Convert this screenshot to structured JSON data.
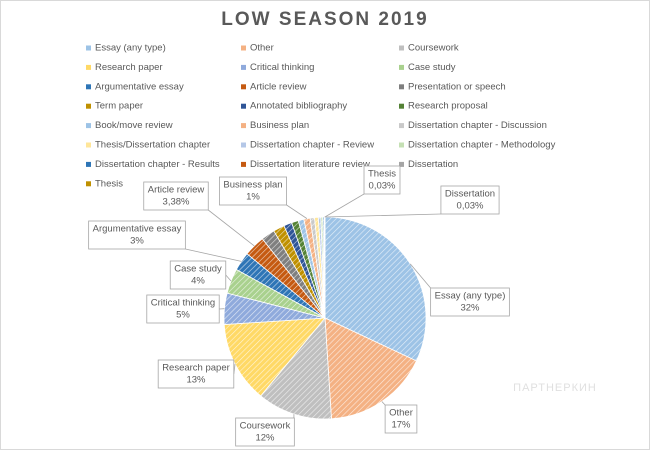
{
  "chart_data": {
    "type": "pie",
    "title": "LOW SEASON 2019",
    "watermark": "ПАРТНЕРКИН",
    "categories": [
      "Essay (any type)",
      "Other",
      "Coursework",
      "Research paper",
      "Critical thinking",
      "Case study",
      "Argumentative essay",
      "Article review",
      "Presentation or speech",
      "Term paper",
      "Annotated bibliography",
      "Research proposal",
      "Book/move review",
      "Business plan",
      "Dissertation chapter - Discussion",
      "Thesis/Dissertation chapter",
      "Dissertation chapter - Review",
      "Dissertation chapter - Methodology",
      "Dissertation chapter - Results",
      "Dissertation literature review",
      "Dissertation",
      "Thesis"
    ],
    "values": [
      32,
      17,
      12,
      13,
      5,
      4,
      3,
      3.38,
      2.2,
      1.8,
      1.3,
      1.1,
      0.9,
      1,
      0.7,
      0.6,
      0.4,
      0.3,
      0.2,
      0.1,
      0.03,
      0.03
    ],
    "value_labels": [
      "32%",
      "17%",
      "12%",
      "13%",
      "5%",
      "4%",
      "3%",
      "3,38%",
      null,
      null,
      null,
      null,
      null,
      "1%",
      null,
      null,
      null,
      null,
      null,
      null,
      "0,03%",
      "0,03%"
    ],
    "colors": [
      "#9dc3e6",
      "#f4b183",
      "#bfbfbf",
      "#ffd966",
      "#8faadc",
      "#a9d18e",
      "#2e75b6",
      "#c55a11",
      "#7f7f7f",
      "#bf9000",
      "#2f5597",
      "#548235",
      "#9dc3e6",
      "#f4b183",
      "#c9c9c9",
      "#ffe699",
      "#b4c7e7",
      "#c5e0b4",
      "#2e75b6",
      "#c55a11",
      "#a5a5a5",
      "#bf9000"
    ],
    "legend_position": "top"
  }
}
